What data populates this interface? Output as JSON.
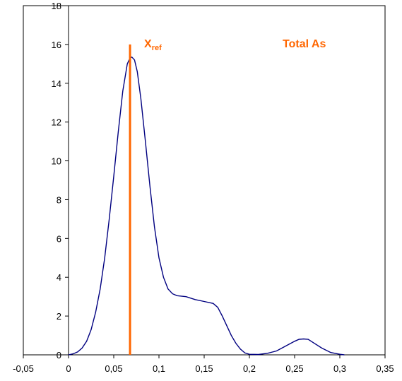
{
  "chart_data": {
    "type": "line",
    "title": "",
    "xlabel": "",
    "ylabel": "",
    "xlim": [
      -0.05,
      0.35
    ],
    "ylim": [
      0,
      18
    ],
    "x_ticks": [
      "-0,05",
      "0",
      "0,05",
      "0,1",
      "0,15",
      "0,2",
      "0,25",
      "0,3",
      "0,35"
    ],
    "y_ticks": [
      "0",
      "2",
      "4",
      "6",
      "8",
      "10",
      "12",
      "14",
      "16",
      "18"
    ],
    "grid": false,
    "series": [
      {
        "color": "#000080",
        "points": [
          [
            0.0,
            0.0
          ],
          [
            0.005,
            0.05
          ],
          [
            0.01,
            0.15
          ],
          [
            0.015,
            0.35
          ],
          [
            0.02,
            0.7
          ],
          [
            0.025,
            1.3
          ],
          [
            0.03,
            2.2
          ],
          [
            0.035,
            3.4
          ],
          [
            0.04,
            5.0
          ],
          [
            0.045,
            7.0
          ],
          [
            0.05,
            9.2
          ],
          [
            0.055,
            11.5
          ],
          [
            0.06,
            13.6
          ],
          [
            0.065,
            15.0
          ],
          [
            0.068,
            15.3
          ],
          [
            0.07,
            15.35
          ],
          [
            0.073,
            15.2
          ],
          [
            0.076,
            14.6
          ],
          [
            0.08,
            13.2
          ],
          [
            0.085,
            11.0
          ],
          [
            0.09,
            8.7
          ],
          [
            0.095,
            6.6
          ],
          [
            0.1,
            5.0
          ],
          [
            0.105,
            4.0
          ],
          [
            0.11,
            3.4
          ],
          [
            0.115,
            3.15
          ],
          [
            0.12,
            3.05
          ],
          [
            0.13,
            3.0
          ],
          [
            0.14,
            2.85
          ],
          [
            0.15,
            2.75
          ],
          [
            0.16,
            2.65
          ],
          [
            0.165,
            2.45
          ],
          [
            0.17,
            2.0
          ],
          [
            0.175,
            1.5
          ],
          [
            0.18,
            1.0
          ],
          [
            0.185,
            0.6
          ],
          [
            0.19,
            0.3
          ],
          [
            0.195,
            0.1
          ],
          [
            0.2,
            0.03
          ],
          [
            0.21,
            0.02
          ],
          [
            0.22,
            0.08
          ],
          [
            0.23,
            0.2
          ],
          [
            0.24,
            0.45
          ],
          [
            0.25,
            0.7
          ],
          [
            0.255,
            0.8
          ],
          [
            0.26,
            0.82
          ],
          [
            0.265,
            0.8
          ],
          [
            0.27,
            0.65
          ],
          [
            0.28,
            0.35
          ],
          [
            0.29,
            0.12
          ],
          [
            0.3,
            0.03
          ],
          [
            0.305,
            0.0
          ]
        ]
      }
    ],
    "reference_line": {
      "x": 0.068,
      "y_top": 16,
      "color": "#ff6600",
      "label_main": "X",
      "label_sub": "ref"
    },
    "annotation": {
      "text": "Total As",
      "color": "#ff6600"
    }
  }
}
